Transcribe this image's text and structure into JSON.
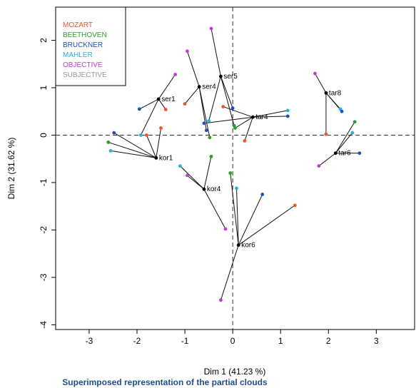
{
  "chart_data": {
    "type": "scatter",
    "title": "",
    "caption": "Superimposed representation of the partial clouds",
    "xlabel": "Dim 1 (41.23 %)",
    "ylabel": "Dim 2 (31.62 %)",
    "xlim": [
      -3.7,
      3.8
    ],
    "ylim": [
      -4.1,
      2.7
    ],
    "xticks": [
      -3,
      -2,
      -1,
      0,
      1,
      2,
      3
    ],
    "yticks": [
      -4,
      -3,
      -2,
      -1,
      0,
      1,
      2
    ],
    "reference_lines": "dashed at x=0 and y=0",
    "legend_position": "top-left",
    "legend": [
      {
        "name": "MOZART",
        "color": "#f0522d"
      },
      {
        "name": "BEETHOVEN",
        "color": "#2aa02a"
      },
      {
        "name": "BRUCKNER",
        "color": "#1f4fbf"
      },
      {
        "name": "MAHLER",
        "color": "#2aaee0"
      },
      {
        "name": "OBJECTIVE",
        "color": "#c23bd6"
      },
      {
        "name": "SUBJECTIVE",
        "color": "#999999"
      }
    ],
    "points": [
      {
        "label": "ser1",
        "x": -1.55,
        "y": 0.76
      },
      {
        "label": "ser4",
        "x": -0.7,
        "y": 1.02
      },
      {
        "label": "ser5",
        "x": -0.25,
        "y": 1.24
      },
      {
        "label": "tar4",
        "x": 0.42,
        "y": 0.38
      },
      {
        "label": "tar8",
        "x": 1.95,
        "y": 0.89
      },
      {
        "label": "tar6",
        "x": 2.15,
        "y": -0.38
      },
      {
        "label": "kor1",
        "x": -1.6,
        "y": -0.48
      },
      {
        "label": "kor4",
        "x": -0.6,
        "y": -1.14
      },
      {
        "label": "kor6",
        "x": 0.12,
        "y": -2.32
      }
    ],
    "partial_points": [
      {
        "of": "ser1",
        "group": "OBJECTIVE",
        "x": -1.2,
        "y": 1.28
      },
      {
        "of": "ser1",
        "group": "MOZART",
        "x": -1.4,
        "y": 0.54
      },
      {
        "of": "ser1",
        "group": "BRUCKNER",
        "x": -1.95,
        "y": 0.55
      },
      {
        "of": "ser1",
        "group": "MAHLER",
        "x": -1.92,
        "y": 0.0
      },
      {
        "of": "ser4",
        "group": "OBJECTIVE",
        "x": -0.95,
        "y": 1.77
      },
      {
        "of": "ser4",
        "group": "MOZART",
        "x": -1.0,
        "y": 0.66
      },
      {
        "of": "ser4",
        "group": "BRUCKNER",
        "x": -0.55,
        "y": 0.1
      },
      {
        "of": "ser4",
        "group": "BEETHOVEN",
        "x": -0.48,
        "y": -0.05
      },
      {
        "of": "ser5",
        "group": "OBJECTIVE",
        "x": -0.45,
        "y": 2.25
      },
      {
        "of": "ser5",
        "group": "BRUCKNER",
        "x": 0.0,
        "y": 0.57
      },
      {
        "of": "ser5",
        "group": "MAHLER",
        "x": -0.5,
        "y": 0.3
      },
      {
        "of": "ser5",
        "group": "BEETHOVEN",
        "x": 0.03,
        "y": 0.2
      },
      {
        "of": "tar4",
        "group": "BRUCKNER",
        "x": 1.15,
        "y": 0.4
      },
      {
        "of": "tar4",
        "group": "MAHLER",
        "x": 1.15,
        "y": 0.52
      },
      {
        "of": "tar4",
        "group": "MOZART",
        "x": -0.2,
        "y": 0.6
      },
      {
        "of": "tar4",
        "group": "MOZART",
        "x": 0.25,
        "y": -0.12
      },
      {
        "of": "tar4",
        "group": "BEETHOVEN",
        "x": 0.05,
        "y": 0.15
      },
      {
        "of": "tar4",
        "group": "BRUCKNER",
        "x": -0.6,
        "y": 0.25
      },
      {
        "of": "tar8",
        "group": "OBJECTIVE",
        "x": 1.72,
        "y": 1.3
      },
      {
        "of": "tar8",
        "group": "MAHLER",
        "x": 2.25,
        "y": 0.55
      },
      {
        "of": "tar8",
        "group": "BRUCKNER",
        "x": 2.28,
        "y": 0.5
      },
      {
        "of": "tar8",
        "group": "MOZART",
        "x": 1.95,
        "y": 0.02
      },
      {
        "of": "tar6",
        "group": "BEETHOVEN",
        "x": 2.55,
        "y": 0.28
      },
      {
        "of": "tar6",
        "group": "MAHLER",
        "x": 2.5,
        "y": 0.05
      },
      {
        "of": "tar6",
        "group": "BRUCKNER",
        "x": 2.65,
        "y": -0.38
      },
      {
        "of": "tar6",
        "group": "OBJECTIVE",
        "x": 1.8,
        "y": -0.65
      },
      {
        "of": "kor1",
        "group": "BRUCKNER",
        "x": -2.48,
        "y": 0.05
      },
      {
        "of": "kor1",
        "group": "BEETHOVEN",
        "x": -2.6,
        "y": -0.15
      },
      {
        "of": "kor1",
        "group": "MAHLER",
        "x": -2.55,
        "y": -0.33
      },
      {
        "of": "kor1",
        "group": "MOZART",
        "x": -1.8,
        "y": 0.0
      },
      {
        "of": "kor1",
        "group": "MOZART",
        "x": -1.5,
        "y": 0.15
      },
      {
        "of": "kor4",
        "group": "BEETHOVEN",
        "x": -0.45,
        "y": -0.45
      },
      {
        "of": "kor4",
        "group": "MAHLER",
        "x": -1.1,
        "y": -0.65
      },
      {
        "of": "kor4",
        "group": "OBJECTIVE",
        "x": -0.95,
        "y": -0.85
      },
      {
        "of": "kor4",
        "group": "OBJECTIVE",
        "x": -0.15,
        "y": -1.98
      },
      {
        "of": "kor6",
        "group": "BEETHOVEN",
        "x": -0.05,
        "y": -0.8
      },
      {
        "of": "kor6",
        "group": "MOZART",
        "x": 1.3,
        "y": -1.48
      },
      {
        "of": "kor6",
        "group": "BRUCKNER",
        "x": 0.62,
        "y": -1.25
      },
      {
        "of": "kor6",
        "group": "MAHLER",
        "x": 0.08,
        "y": -1.12
      },
      {
        "of": "kor6",
        "group": "OBJECTIVE",
        "x": -0.25,
        "y": -3.48
      }
    ]
  }
}
